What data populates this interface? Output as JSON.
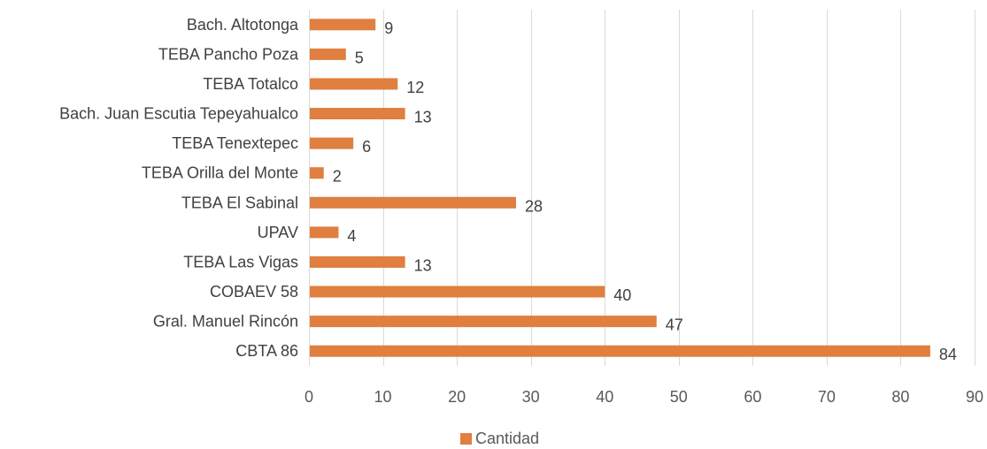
{
  "chart_data": {
    "type": "bar",
    "orientation": "horizontal",
    "title": "",
    "xlabel": "",
    "ylabel": "",
    "categories": [
      "Bach. Altotonga",
      "TEBA Pancho Poza",
      "TEBA Totalco",
      "Bach. Juan Escutia Tepeyahualco",
      "TEBA Tenextepec",
      "TEBA Orilla del Monte",
      "TEBA El Sabinal",
      "UPAV",
      "TEBA Las Vigas",
      "COBAEV 58",
      "Gral. Manuel Rincón",
      "CBTA 86"
    ],
    "series": [
      {
        "name": "Cantidad",
        "color": "#E07F3F",
        "values": [
          9,
          5,
          12,
          13,
          6,
          2,
          28,
          4,
          13,
          40,
          47,
          84
        ]
      }
    ],
    "xlim": [
      0,
      90
    ],
    "xticks": [
      0,
      10,
      20,
      30,
      40,
      50,
      60,
      70,
      80,
      90
    ],
    "grid": true,
    "legend_position": "bottom",
    "data_labels": true
  }
}
